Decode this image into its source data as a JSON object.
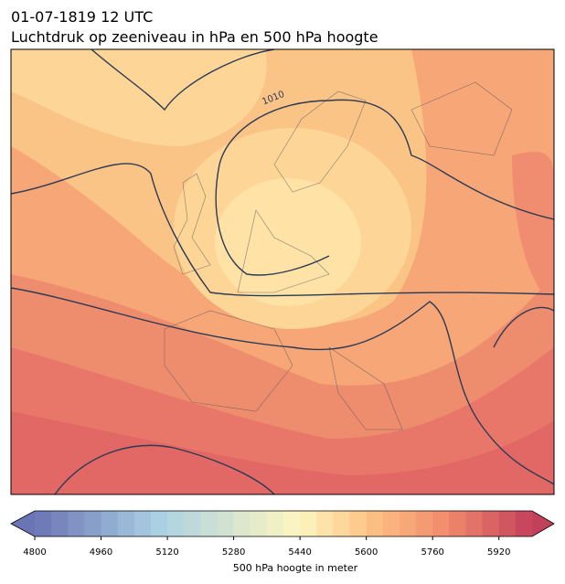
{
  "header": {
    "title": "01-07-1819 12 UTC",
    "subtitle": "Luchtdruk op zeeniveau in hPa en 500 hPa hoogte"
  },
  "map": {
    "contour_labels": [
      "1010"
    ],
    "colorbar": {
      "label": "500 hPa hoogte in meter",
      "range": [
        4800,
        6000
      ],
      "step": 40,
      "ticks": [
        4800,
        4960,
        5120,
        5280,
        5440,
        5600,
        5760,
        5920
      ]
    }
  }
}
